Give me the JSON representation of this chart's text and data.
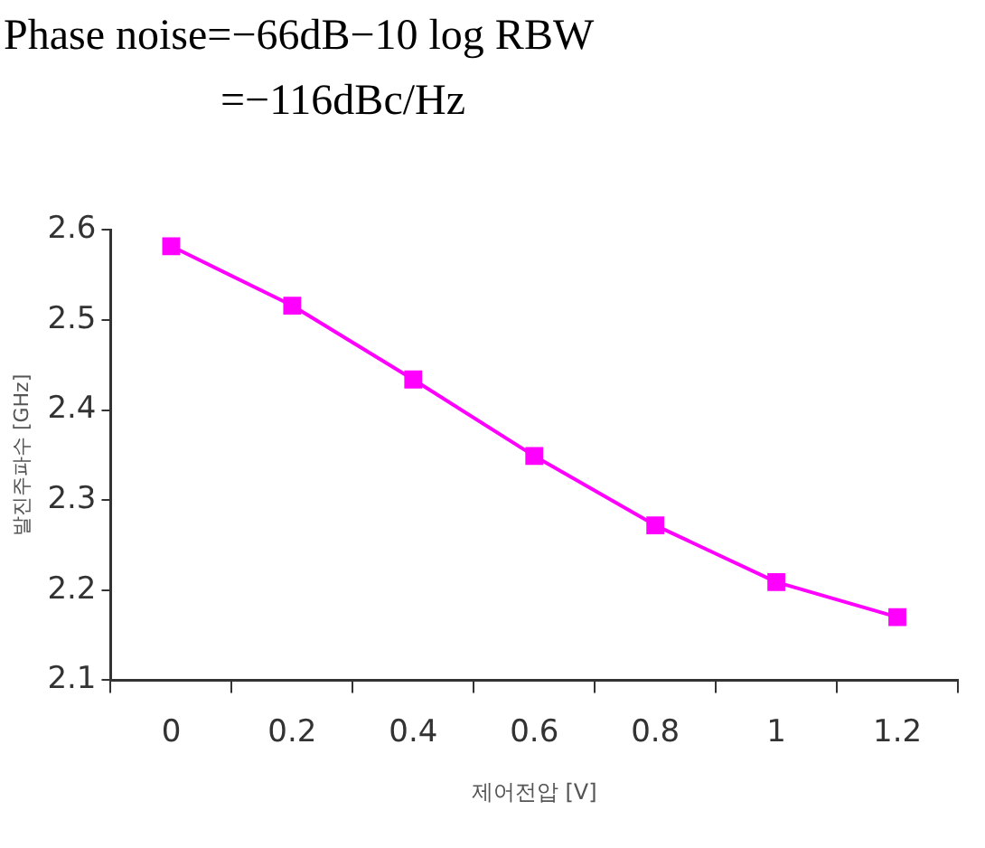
{
  "chart_data": {
    "type": "line",
    "annotations": [
      "Phase noise=−66dB−10 log RBW",
      "=−116dBc/Hz"
    ],
    "xlabel": "제어전압 [V]",
    "ylabel": "발진주파수 [GHz]",
    "categories": [
      "0",
      "0.2",
      "0.4",
      "0.6",
      "0.8",
      "1",
      "1.2"
    ],
    "series": [
      {
        "color": "#ff00ff",
        "values": [
          2.582,
          2.516,
          2.434,
          2.349,
          2.272,
          2.209,
          2.17
        ]
      }
    ],
    "ylim": [
      2.1,
      2.6
    ],
    "yticks": [
      2.1,
      2.2,
      2.3,
      2.4,
      2.5,
      2.6
    ],
    "grid": false,
    "legend": false,
    "marker": "square",
    "line_style": "solid"
  }
}
